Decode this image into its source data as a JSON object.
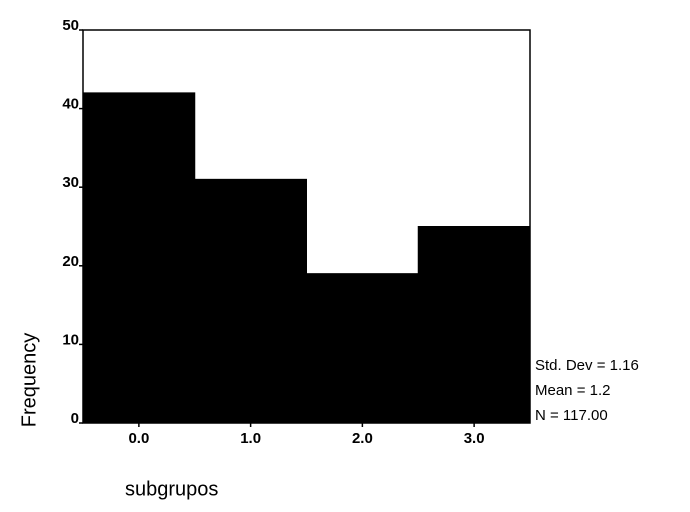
{
  "chart_data": {
    "type": "histogram",
    "bins": [
      -0.5,
      0.5,
      1.5,
      2.5,
      3.5
    ],
    "values": [
      42,
      31,
      19,
      25
    ],
    "color": "#000000",
    "xlim": [
      -0.5,
      3.5
    ],
    "xticks": [
      {
        "value": 0,
        "label": "0.0"
      },
      {
        "value": 1,
        "label": "1.0"
      },
      {
        "value": 2,
        "label": "2.0"
      },
      {
        "value": 3,
        "label": "3.0"
      }
    ],
    "ylim": [
      0,
      50
    ],
    "yticks": [
      0,
      10,
      20,
      30,
      40,
      50
    ],
    "xlabel": "subgrupos",
    "ylabel": "Frequency",
    "annotations": [
      "Std. Dev = 1.16",
      "Mean = 1.2",
      "N = 117.00"
    ]
  }
}
